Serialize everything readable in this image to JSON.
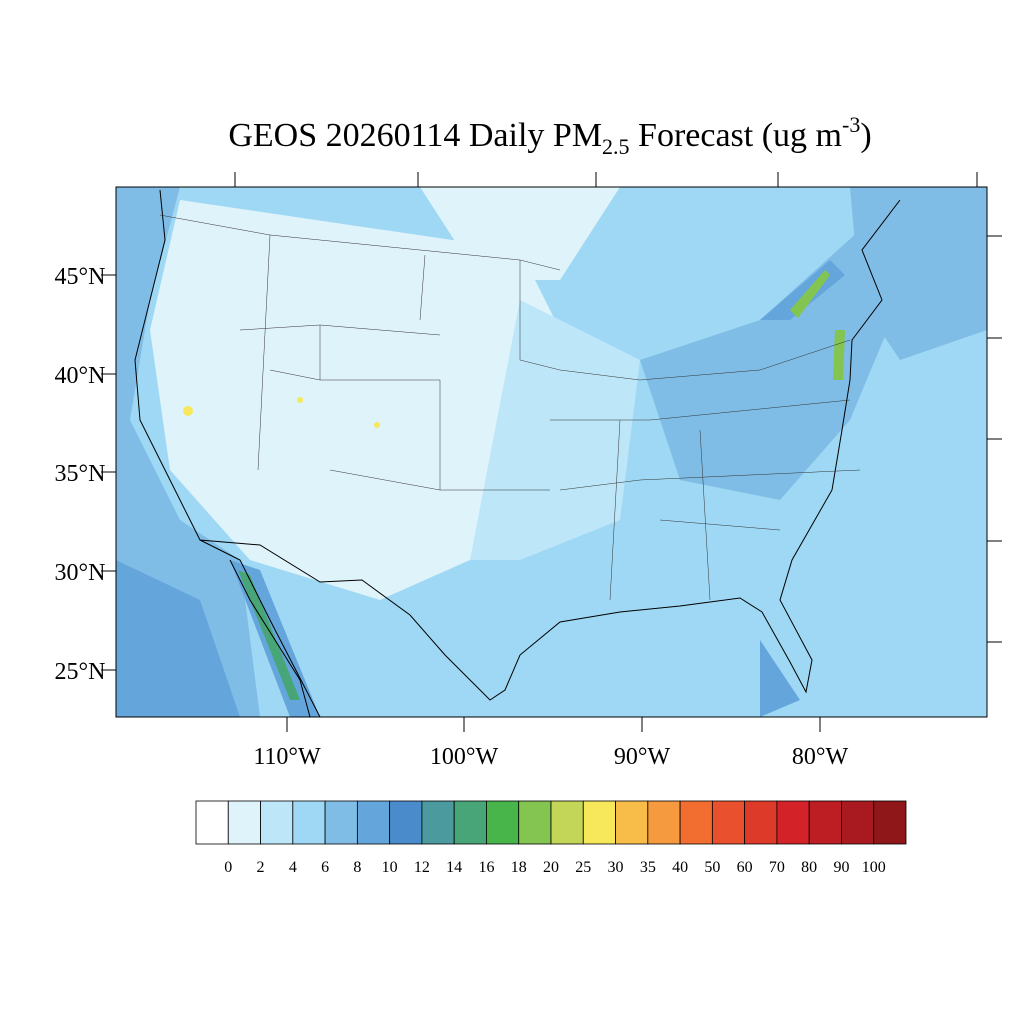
{
  "header": {
    "title": {
      "main": "GEOS 20260114 Daily PM",
      "sub": "2.5",
      "rest": " Forecast (ug m",
      "sup": "-3",
      "end": ")"
    }
  },
  "map": {
    "lat_labels": [
      "45°N",
      "40°N",
      "35°N",
      "30°N",
      "25°N"
    ],
    "lon_labels": [
      "110°W",
      "100°W",
      "90°W",
      "80°W"
    ]
  },
  "colorbar": {
    "colors": [
      "#ffffff",
      "#dff3fb",
      "#bde6f8",
      "#9fd8f4",
      "#80bde6",
      "#64a6db",
      "#4a8bcb",
      "#4a9a9e",
      "#48a577",
      "#47b549",
      "#84c450",
      "#c3d657",
      "#f6e75b",
      "#f8bd48",
      "#f59a3e",
      "#f26e30",
      "#e8502e",
      "#de3a2a",
      "#d42229",
      "#bd1e24",
      "#a81a1f",
      "#8f1619"
    ],
    "levels": [
      0,
      2,
      4,
      6,
      8,
      10,
      12,
      14,
      16,
      18,
      20,
      25,
      30,
      35,
      40,
      50,
      60,
      70,
      80,
      90,
      100
    ]
  }
}
